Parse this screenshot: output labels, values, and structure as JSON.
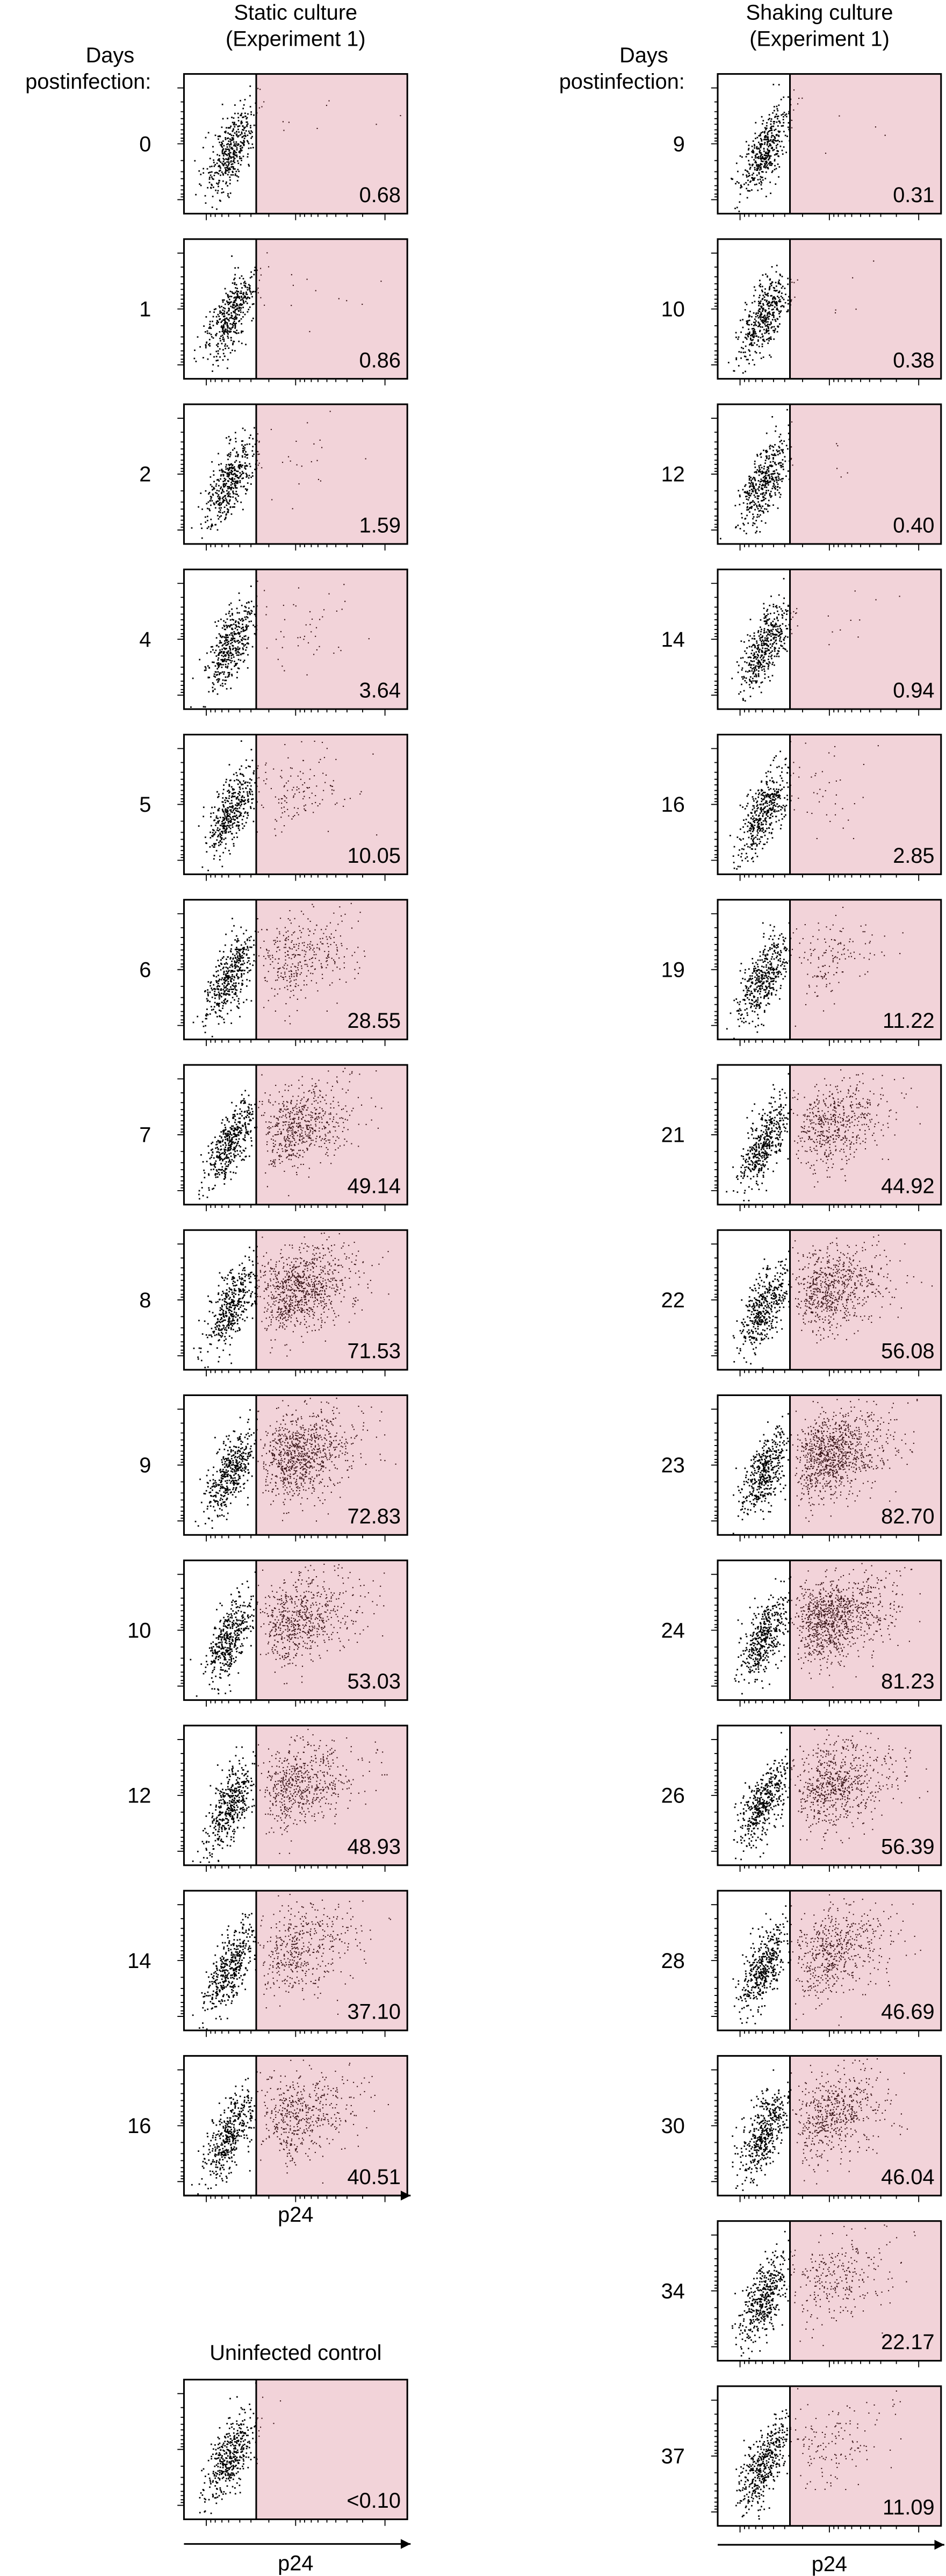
{
  "columns": [
    {
      "title_line1": "Static culture",
      "title_line2": "(Experiment 1)",
      "days_label_line1": "Days",
      "days_label_line2": "postinfection:",
      "panels": [
        {
          "day": 0,
          "percent": "0.68"
        },
        {
          "day": 1,
          "percent": "0.86"
        },
        {
          "day": 2,
          "percent": "1.59"
        },
        {
          "day": 4,
          "percent": "3.64"
        },
        {
          "day": 5,
          "percent": "10.05"
        },
        {
          "day": 6,
          "percent": "28.55"
        },
        {
          "day": 7,
          "percent": "49.14"
        },
        {
          "day": 8,
          "percent": "71.53"
        },
        {
          "day": 9,
          "percent": "72.83"
        },
        {
          "day": 10,
          "percent": "53.03"
        },
        {
          "day": 12,
          "percent": "48.93"
        },
        {
          "day": 14,
          "percent": "37.10"
        },
        {
          "day": 16,
          "percent": "40.51"
        }
      ],
      "axis_label": "p24"
    },
    {
      "title_line1": "Shaking culture",
      "title_line2": "(Experiment 1)",
      "days_label_line1": "Days",
      "days_label_line2": "postinfection:",
      "panels": [
        {
          "day": 9,
          "percent": "0.31"
        },
        {
          "day": 10,
          "percent": "0.38"
        },
        {
          "day": 12,
          "percent": "0.40"
        },
        {
          "day": 14,
          "percent": "0.94"
        },
        {
          "day": 16,
          "percent": "2.85"
        },
        {
          "day": 19,
          "percent": "11.22"
        },
        {
          "day": 21,
          "percent": "44.92"
        },
        {
          "day": 22,
          "percent": "56.08"
        },
        {
          "day": 23,
          "percent": "82.70"
        },
        {
          "day": 24,
          "percent": "81.23"
        },
        {
          "day": 26,
          "percent": "56.39"
        },
        {
          "day": 28,
          "percent": "46.69"
        },
        {
          "day": 30,
          "percent": "46.04"
        },
        {
          "day": 34,
          "percent": "22.17"
        },
        {
          "day": 37,
          "percent": "11.09"
        }
      ],
      "axis_label": "p24"
    }
  ],
  "control": {
    "title": "Uninfected control",
    "percent": "<0.10",
    "axis_label": "p24"
  }
}
